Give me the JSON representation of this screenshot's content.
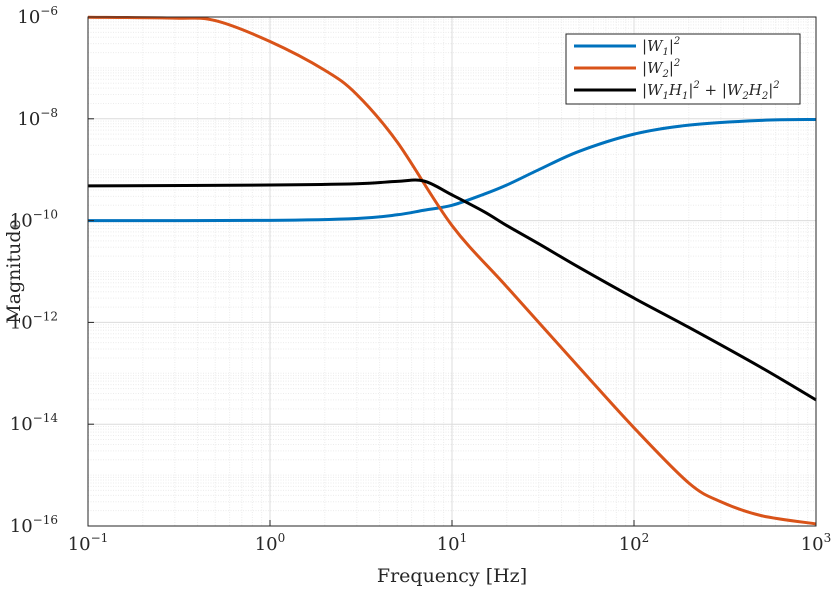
{
  "chart_data": {
    "type": "line",
    "xlabel": "Frequency [Hz]",
    "ylabel": "Magnitude",
    "xscale": "log",
    "yscale": "log",
    "xlim": [
      0.1,
      1000
    ],
    "ylim": [
      1e-16,
      1e-06
    ],
    "grid": true,
    "legend_placement": "top-right",
    "x_ticks": [
      {
        "v": 0.1,
        "b": "10",
        "e": "−1"
      },
      {
        "v": 1,
        "b": "10",
        "e": "0"
      },
      {
        "v": 10,
        "b": "10",
        "e": "1"
      },
      {
        "v": 100,
        "b": "10",
        "e": "2"
      },
      {
        "v": 1000,
        "b": "10",
        "e": "3"
      }
    ],
    "y_ticks": [
      {
        "v": 1e-16,
        "b": "10",
        "e": "−16"
      },
      {
        "v": 1e-14,
        "b": "10",
        "e": "−14"
      },
      {
        "v": 1e-12,
        "b": "10",
        "e": "−12"
      },
      {
        "v": 1e-10,
        "b": "10",
        "e": "−10"
      },
      {
        "v": 1e-08,
        "b": "10",
        "e": "−8"
      },
      {
        "v": 1e-06,
        "b": "10",
        "e": "−6"
      }
    ],
    "series": [
      {
        "name": "|W1|^2",
        "color": "#0072BD",
        "x": [
          0.1,
          1,
          3,
          5,
          7,
          10,
          15,
          20,
          30,
          50,
          100,
          200,
          500,
          1000
        ],
        "y": [
          1e-10,
          1.01e-10,
          1.1e-10,
          1.3e-10,
          1.6e-10,
          2e-10,
          3.3e-10,
          5e-10,
          1e-09,
          2.3e-09,
          5e-09,
          7.5e-09,
          9.3e-09,
          9.7e-09
        ]
      },
      {
        "name": "|W2|^2",
        "color": "#D95319",
        "x": [
          0.1,
          0.3,
          0.5,
          1,
          2,
          3,
          5,
          10,
          20,
          50,
          100,
          200,
          300,
          500,
          1000
        ],
        "y": [
          9.9e-07,
          9.5e-07,
          8.5e-07,
          3.3e-07,
          9e-08,
          3e-08,
          3.5e-09,
          8e-11,
          5e-12,
          1.3e-13,
          8.5e-15,
          7e-16,
          3e-16,
          1.6e-16,
          1.1e-16
        ]
      },
      {
        "name": "|W1H1|^2+|W2H2|^2",
        "color": "#000000",
        "x": [
          0.1,
          1,
          3,
          5,
          7,
          10,
          15,
          20,
          30,
          50,
          100,
          200,
          500,
          1000
        ],
        "y": [
          4.8e-10,
          5e-10,
          5.3e-10,
          5.9e-10,
          6e-10,
          3.2e-10,
          1.5e-10,
          8e-11,
          3.5e-11,
          1.2e-11,
          3e-12,
          8e-13,
          1.3e-13,
          3e-14
        ]
      }
    ],
    "legend": [
      {
        "pre": "|W",
        "sub": "1",
        "post": "|",
        "sup": "2"
      },
      {
        "pre": "|W",
        "sub": "2",
        "post": "|",
        "sup": "2"
      },
      {
        "pre": "|W",
        "sub": "1",
        "mid": "H",
        "sub2": "1",
        "post": "|",
        "sup": "2",
        "plus": " + |W",
        "sub3": "2",
        "mid2": "H",
        "sub4": "2",
        "post2": "|",
        "sup2": "2"
      }
    ]
  }
}
